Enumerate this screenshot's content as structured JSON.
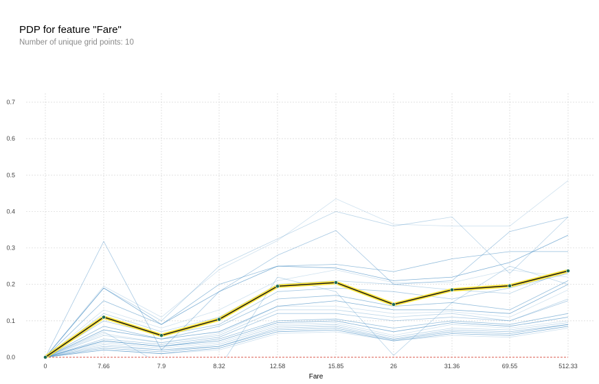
{
  "chart_data": {
    "type": "line",
    "title": "PDP for feature \"Fare\"",
    "subtitle": "Number of unique grid points: 10",
    "xlabel": "Fare",
    "ylabel": "",
    "categories": [
      "0",
      "7.66",
      "7.9",
      "8.32",
      "12.58",
      "15.85",
      "26",
      "31.36",
      "69.55",
      "512.33"
    ],
    "ylim": [
      0,
      0.72
    ],
    "yticks": [
      "0.0",
      "0.1",
      "0.2",
      "0.3",
      "0.4",
      "0.5",
      "0.6",
      "0.7"
    ],
    "grid": true,
    "zero_line": true,
    "average": [
      0,
      0.11,
      0.06,
      0.104,
      0.195,
      0.205,
      0.145,
      0.185,
      0.196,
      0.237
    ],
    "ice_lines": [
      [
        0,
        0.195,
        0.11,
        0.24,
        0.32,
        0.435,
        0.365,
        0.36,
        0.36,
        0.485
      ],
      [
        0,
        0.19,
        0.1,
        0.25,
        0.325,
        0.4,
        0.36,
        0.385,
        0.23,
        0.385
      ],
      [
        0,
        0.318,
        0.02,
        0.18,
        0.28,
        0.348,
        0.2,
        0.21,
        0.345,
        0.385
      ],
      [
        0,
        0.155,
        0.09,
        0.2,
        0.25,
        0.255,
        0.235,
        0.27,
        0.29,
        0.29
      ],
      [
        0,
        0.19,
        0.09,
        0.18,
        0.25,
        0.245,
        0.21,
        0.22,
        0.26,
        0.335
      ],
      [
        0,
        0.13,
        0.08,
        0.13,
        0.21,
        0.24,
        0.205,
        0.205,
        0.24,
        0.22
      ],
      [
        0,
        0.12,
        0.07,
        0.11,
        0.2,
        0.21,
        0.2,
        0.185,
        0.175,
        0.24
      ],
      [
        0,
        0.1,
        0.06,
        0.09,
        0.18,
        0.19,
        0.18,
        0.16,
        0.19,
        0.23
      ],
      [
        0,
        0.085,
        0.05,
        0.085,
        0.16,
        0.17,
        0.14,
        0.15,
        0.13,
        0.21
      ],
      [
        0,
        0.075,
        0.05,
        0.07,
        0.14,
        0.155,
        0.13,
        0.13,
        0.12,
        0.2
      ],
      [
        0,
        0.065,
        0.04,
        0.065,
        0.14,
        0.14,
        0.12,
        0.125,
        0.11,
        0.185
      ],
      [
        0,
        0.06,
        0.04,
        0.06,
        0.13,
        0.13,
        0.11,
        0.12,
        0.1,
        0.16
      ],
      [
        0,
        0.05,
        0.035,
        0.055,
        0.12,
        0.12,
        0.1,
        0.11,
        0.1,
        0.155
      ],
      [
        0,
        0.045,
        0.03,
        0.05,
        0.1,
        0.105,
        0.08,
        0.1,
        0.09,
        0.12
      ],
      [
        0,
        0.045,
        0.03,
        0.045,
        0.095,
        0.1,
        0.07,
        0.095,
        0.085,
        0.11
      ],
      [
        0,
        0.04,
        0.025,
        0.04,
        0.09,
        0.095,
        0.06,
        0.09,
        0.08,
        0.1
      ],
      [
        0,
        0.035,
        0.02,
        0.035,
        0.085,
        0.09,
        0.055,
        0.08,
        0.075,
        0.095
      ],
      [
        0,
        0.03,
        0.02,
        0.03,
        0.08,
        0.085,
        0.05,
        0.075,
        0.07,
        0.09
      ],
      [
        0,
        0.025,
        0.015,
        0.03,
        0.075,
        0.08,
        0.048,
        0.07,
        0.065,
        0.09
      ],
      [
        0,
        0.02,
        0.01,
        0.025,
        0.07,
        0.075,
        0.045,
        0.065,
        0.06,
        0.085
      ],
      [
        0,
        0.02,
        0.01,
        0.02,
        0.065,
        0.07,
        0.045,
        0.06,
        0.055,
        0.08
      ],
      [
        0,
        0.07,
        -0.02,
        -0.03,
        0.22,
        0.18,
        0.005,
        0.15,
        0.25,
        0.2
      ]
    ],
    "colors": {
      "average_line": "#1a1a1a",
      "average_highlight": "#ffe31a",
      "average_marker": "#1a6b55",
      "ice_line": "#3a86c0",
      "zero_line": "#d9564a",
      "grid": "#d6d6d6"
    }
  }
}
